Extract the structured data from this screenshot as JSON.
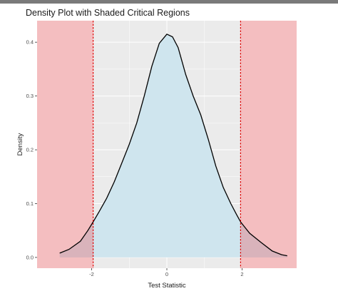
{
  "chart_data": {
    "type": "area",
    "title": "Density Plot with Shaded Critical Regions",
    "xlabel": "Test Statistic",
    "ylabel": "Density",
    "xlim": [
      -3.45,
      3.45
    ],
    "ylim": [
      -0.02,
      0.44
    ],
    "x_ticks": [
      -2,
      0,
      2
    ],
    "x_tick_labels": [
      "-2",
      "0",
      "2"
    ],
    "y_ticks": [
      0.0,
      0.1,
      0.2,
      0.3,
      0.4
    ],
    "y_tick_labels": [
      "0.0",
      "0.1",
      "0.2",
      "0.3",
      "0.4"
    ],
    "grid": true,
    "critical_values": [
      -1.96,
      1.96
    ],
    "density_curve": {
      "x": [
        -2.85,
        -2.6,
        -2.3,
        -2.1,
        -1.96,
        -1.8,
        -1.6,
        -1.4,
        -1.2,
        -1.0,
        -0.8,
        -0.6,
        -0.4,
        -0.2,
        0.0,
        0.15,
        0.3,
        0.5,
        0.7,
        0.9,
        1.1,
        1.3,
        1.5,
        1.7,
        1.85,
        1.96,
        2.2,
        2.5,
        2.8,
        3.05,
        3.2
      ],
      "y": [
        0.008,
        0.015,
        0.03,
        0.05,
        0.066,
        0.085,
        0.11,
        0.14,
        0.175,
        0.21,
        0.25,
        0.3,
        0.355,
        0.398,
        0.415,
        0.41,
        0.39,
        0.34,
        0.3,
        0.265,
        0.22,
        0.17,
        0.13,
        0.1,
        0.08,
        0.066,
        0.045,
        0.028,
        0.012,
        0.005,
        0.003
      ]
    },
    "colors": {
      "critical_fill": "#f4bec0",
      "acceptance_fill": "#cfe5ee",
      "tail_fill": "#d9b3bb",
      "curve": "#000000",
      "critical_line": "#e00000",
      "panel_background": "#ebebeb",
      "gridline": "#ffffff"
    }
  }
}
